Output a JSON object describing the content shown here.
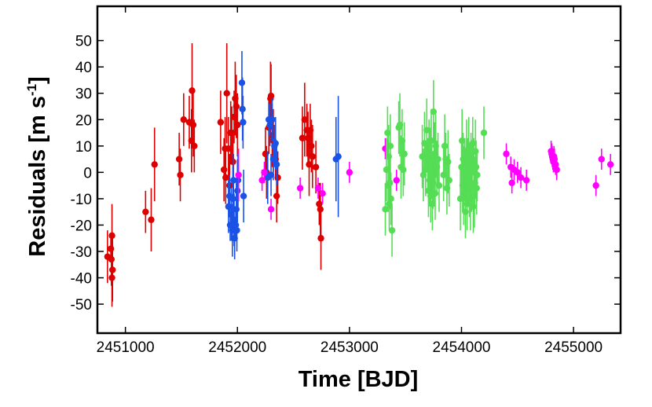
{
  "chart_data": {
    "type": "scatter",
    "title": "",
    "xlabel": "Time [BJD]",
    "ylabel": "Residuals [m s",
    "ylabel_sup": "-1",
    "ylabel_close": "]",
    "xlim": [
      2450750,
      2455420
    ],
    "ylim": [
      -61,
      63
    ],
    "xticks": [
      2451000,
      2452000,
      2453000,
      2454000,
      2455000
    ],
    "xtick_labels": [
      "2451000",
      "2452000",
      "2453000",
      "2454000",
      "2455000"
    ],
    "yticks": [
      50,
      40,
      30,
      20,
      10,
      0,
      -10,
      -20,
      -30,
      -40,
      -50
    ],
    "ytick_labels": [
      "50",
      "40",
      "30",
      "20",
      "10",
      "0",
      "-10",
      "-20",
      "-30",
      "-40",
      "-50"
    ],
    "grid": false,
    "legend": "none",
    "series": [
      {
        "color": "#dd0000",
        "points": [
          [
            2450840,
            -32,
            10
          ],
          [
            2450870,
            -29,
            5
          ],
          [
            2450880,
            -24,
            12
          ],
          [
            2450875,
            -33,
            10
          ],
          [
            2450885,
            -37,
            12
          ],
          [
            2450880,
            -40,
            11
          ],
          [
            2451180,
            -15,
            8
          ],
          [
            2451230,
            -18,
            12
          ],
          [
            2451260,
            3,
            14
          ],
          [
            2451480,
            5,
            10
          ],
          [
            2451490,
            -1,
            10
          ],
          [
            2451520,
            20,
            10
          ],
          [
            2451570,
            19,
            10
          ],
          [
            2451590,
            12,
            12
          ],
          [
            2451595,
            31,
            18
          ],
          [
            2451605,
            18,
            12
          ],
          [
            2451615,
            10,
            10
          ],
          [
            2451850,
            19,
            12
          ],
          [
            2451880,
            1,
            12
          ],
          [
            2451890,
            9,
            12
          ],
          [
            2451895,
            -2,
            10
          ],
          [
            2451905,
            30,
            19
          ],
          [
            2451920,
            9,
            12
          ],
          [
            2451930,
            -5,
            12
          ],
          [
            2451940,
            15,
            12
          ],
          [
            2451950,
            15,
            10
          ],
          [
            2451960,
            4,
            10
          ],
          [
            2451970,
            21,
            10
          ],
          [
            2451980,
            28,
            14
          ],
          [
            2451990,
            25,
            12
          ],
          [
            2452000,
            18,
            12
          ],
          [
            2452250,
            7,
            10
          ],
          [
            2452260,
            0,
            10
          ],
          [
            2452280,
            17,
            10
          ],
          [
            2452290,
            20,
            10
          ],
          [
            2452295,
            28,
            14
          ],
          [
            2452300,
            29,
            12
          ],
          [
            2452310,
            14,
            12
          ],
          [
            2452320,
            12,
            12
          ],
          [
            2452340,
            5,
            8
          ],
          [
            2452350,
            -9,
            10
          ],
          [
            2452360,
            -2,
            10
          ],
          [
            2452580,
            13,
            12
          ],
          [
            2452600,
            20,
            14
          ],
          [
            2452620,
            16,
            10
          ],
          [
            2452630,
            13,
            10
          ],
          [
            2452640,
            3,
            12
          ],
          [
            2452650,
            16,
            10
          ],
          [
            2452660,
            10,
            10
          ],
          [
            2452670,
            6,
            12
          ],
          [
            2452700,
            2,
            10
          ],
          [
            2452730,
            -12,
            8
          ],
          [
            2452740,
            -14,
            10
          ],
          [
            2452745,
            -25,
            12
          ]
        ]
      },
      {
        "color": "#1a52e6",
        "points": [
          [
            2451920,
            -13,
            10
          ],
          [
            2451930,
            -9,
            8
          ],
          [
            2451935,
            -20,
            6
          ],
          [
            2451945,
            -16,
            10
          ],
          [
            2451955,
            -22,
            10
          ],
          [
            2451960,
            -10,
            12
          ],
          [
            2451965,
            -3,
            10
          ],
          [
            2451970,
            -18,
            10
          ],
          [
            2451975,
            -25,
            8
          ],
          [
            2451985,
            -20,
            6
          ],
          [
            2451990,
            -14,
            10
          ],
          [
            2451995,
            -22,
            8
          ],
          [
            2452000,
            -7,
            12
          ],
          [
            2452005,
            -3,
            10
          ],
          [
            2452040,
            34,
            12
          ],
          [
            2452045,
            24,
            12
          ],
          [
            2452050,
            19,
            10
          ],
          [
            2452055,
            -9,
            10
          ],
          [
            2452270,
            -2,
            10
          ],
          [
            2452280,
            20,
            6
          ],
          [
            2452290,
            18,
            8
          ],
          [
            2452300,
            -1,
            8
          ],
          [
            2452310,
            20,
            8
          ],
          [
            2452320,
            5,
            8
          ],
          [
            2452330,
            10,
            8
          ],
          [
            2452340,
            11,
            10
          ],
          [
            2452350,
            3,
            8
          ],
          [
            2452880,
            5,
            16
          ],
          [
            2452900,
            6,
            23
          ]
        ]
      },
      {
        "color": "#ff00ff",
        "points": [
          [
            2452010,
            -1,
            10
          ],
          [
            2452220,
            -3,
            4
          ],
          [
            2452240,
            0,
            4
          ],
          [
            2452300,
            -14,
            4
          ],
          [
            2452560,
            -6,
            4
          ],
          [
            2452720,
            -6,
            4
          ],
          [
            2452760,
            -8,
            4
          ],
          [
            2453000,
            0,
            4
          ],
          [
            2453320,
            9,
            4
          ],
          [
            2453420,
            -3,
            4
          ],
          [
            2453750,
            0,
            4
          ],
          [
            2454400,
            7,
            4
          ],
          [
            2454440,
            2,
            4
          ],
          [
            2454450,
            -4,
            4
          ],
          [
            2454470,
            1,
            4
          ],
          [
            2454500,
            0,
            4
          ],
          [
            2454530,
            -2,
            4
          ],
          [
            2454580,
            -3,
            4
          ],
          [
            2454800,
            8,
            4
          ],
          [
            2454805,
            7,
            4
          ],
          [
            2454810,
            6,
            4
          ],
          [
            2454815,
            5,
            4
          ],
          [
            2454820,
            4,
            4
          ],
          [
            2454825,
            6,
            4
          ],
          [
            2454830,
            5,
            4
          ],
          [
            2454840,
            3,
            4
          ],
          [
            2454850,
            1,
            4
          ],
          [
            2455200,
            -5,
            4
          ],
          [
            2455250,
            5,
            4
          ],
          [
            2455330,
            3,
            4
          ]
        ]
      },
      {
        "color": "#55dd55",
        "points": [
          [
            2453320,
            -14,
            10
          ],
          [
            2453330,
            1,
            12
          ],
          [
            2453340,
            15,
            10
          ],
          [
            2453345,
            -5,
            10
          ],
          [
            2453350,
            6,
            12
          ],
          [
            2453355,
            -12,
            10
          ],
          [
            2453360,
            -4,
            10
          ],
          [
            2453365,
            10,
            12
          ],
          [
            2453370,
            -10,
            10
          ],
          [
            2453380,
            -22,
            10
          ],
          [
            2453440,
            17,
            10
          ],
          [
            2453450,
            18,
            12
          ],
          [
            2453460,
            2,
            12
          ],
          [
            2453470,
            12,
            12
          ],
          [
            2453480,
            1,
            10
          ],
          [
            2453490,
            7,
            12
          ],
          [
            2453650,
            6,
            12
          ],
          [
            2453660,
            -1,
            10
          ],
          [
            2453670,
            11,
            12
          ],
          [
            2453680,
            1,
            10
          ],
          [
            2453690,
            16,
            12
          ],
          [
            2453700,
            3,
            10
          ],
          [
            2453705,
            -7,
            10
          ],
          [
            2453710,
            8,
            12
          ],
          [
            2453715,
            -3,
            10
          ],
          [
            2453720,
            5,
            12
          ],
          [
            2453725,
            -9,
            10
          ],
          [
            2453730,
            12,
            12
          ],
          [
            2453735,
            2,
            10
          ],
          [
            2453740,
            -12,
            10
          ],
          [
            2453745,
            -4,
            10
          ],
          [
            2453750,
            23,
            12
          ],
          [
            2453755,
            -1,
            10
          ],
          [
            2453760,
            7,
            12
          ],
          [
            2453765,
            -8,
            10
          ],
          [
            2453770,
            10,
            12
          ],
          [
            2453780,
            2,
            10
          ],
          [
            2453790,
            5,
            10
          ],
          [
            2453800,
            -5,
            10
          ],
          [
            2453840,
            -1,
            10
          ],
          [
            2453850,
            10,
            12
          ],
          [
            2453860,
            5,
            10
          ],
          [
            2453870,
            -6,
            10
          ],
          [
            2453880,
            4,
            12
          ],
          [
            2453890,
            -3,
            10
          ],
          [
            2453990,
            -10,
            12
          ],
          [
            2454000,
            2,
            10
          ],
          [
            2454005,
            12,
            12
          ],
          [
            2454010,
            -5,
            10
          ],
          [
            2454015,
            5,
            10
          ],
          [
            2454020,
            -8,
            12
          ],
          [
            2454025,
            0,
            10
          ],
          [
            2454030,
            1,
            12
          ],
          [
            2454035,
            -15,
            10
          ],
          [
            2454040,
            -3,
            10
          ],
          [
            2454045,
            8,
            12
          ],
          [
            2454050,
            -12,
            10
          ],
          [
            2454055,
            3,
            10
          ],
          [
            2454060,
            -2,
            10
          ],
          [
            2454065,
            9,
            12
          ],
          [
            2454070,
            -7,
            10
          ],
          [
            2454075,
            1,
            10
          ],
          [
            2454080,
            -10,
            12
          ],
          [
            2454085,
            5,
            10
          ],
          [
            2454090,
            -5,
            10
          ],
          [
            2454095,
            0,
            12
          ],
          [
            2454100,
            11,
            10
          ],
          [
            2454105,
            -13,
            10
          ],
          [
            2454110,
            3,
            10
          ],
          [
            2454115,
            -9,
            12
          ],
          [
            2454120,
            -4,
            10
          ],
          [
            2454125,
            8,
            12
          ],
          [
            2454130,
            2,
            10
          ],
          [
            2454135,
            -6,
            10
          ],
          [
            2454140,
            -1,
            10
          ],
          [
            2454200,
            15,
            10
          ]
        ]
      }
    ]
  }
}
